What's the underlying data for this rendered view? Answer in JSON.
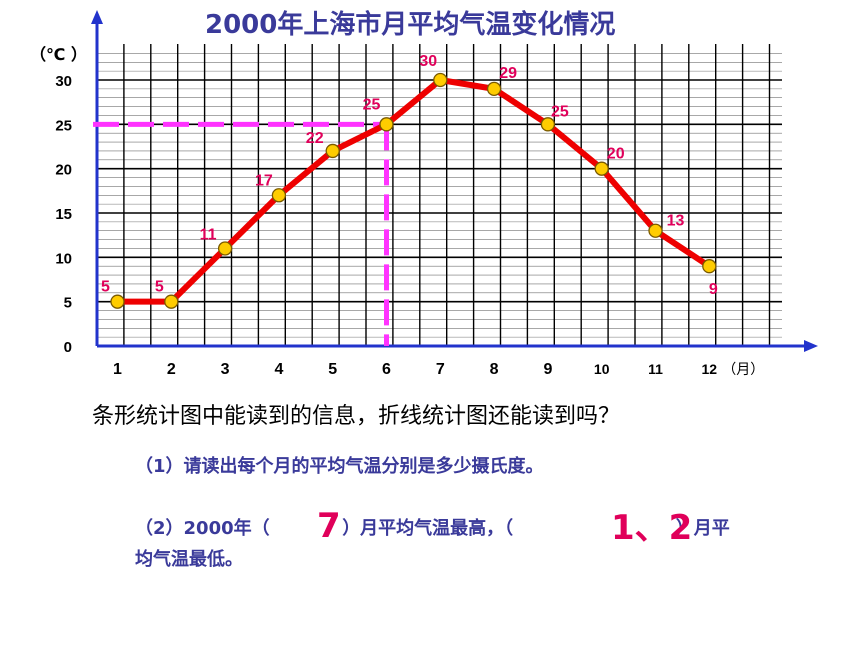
{
  "chart_data": {
    "type": "line",
    "title": "2000年上海市月平均气温变化情况",
    "ylabel": "（℃ ）",
    "xlabel": "（月）",
    "categories": [
      "1",
      "2",
      "3",
      "4",
      "5",
      "6",
      "7",
      "8",
      "9",
      "10",
      "11",
      "12"
    ],
    "values": [
      5,
      5,
      11,
      17,
      22,
      25,
      30,
      29,
      25,
      20,
      13,
      9
    ],
    "value_labels": [
      "5",
      "5",
      "11",
      "17",
      "22",
      "25",
      "30",
      "29",
      "25",
      "20",
      "13",
      "9"
    ],
    "yticks": [
      "0",
      "5",
      "10",
      "15",
      "20",
      "25",
      "30"
    ],
    "ylim": [
      0,
      33
    ],
    "grid": true,
    "highlight": {
      "month": "6",
      "value": 25
    },
    "colors": {
      "line": "#ee0000",
      "marker_fill": "#ffcc00",
      "marker_stroke": "#7a5a00",
      "label": "#e0005a",
      "dashed": "#ff33ff",
      "axis": "#2233cc",
      "grid": "#000000"
    }
  },
  "question": "条形统计图中能读到的信息，折线统计图还能读到吗？",
  "q1": "（1）请读出每个月的平均气温分别是多少摄氏度。",
  "q2": {
    "part1": "（2）2000年（",
    "answer_high": "7",
    "part2": "）月平均气温最高，（",
    "answer_low": "1、2",
    "part3": "）月平",
    "line2": "均气温最低。"
  }
}
